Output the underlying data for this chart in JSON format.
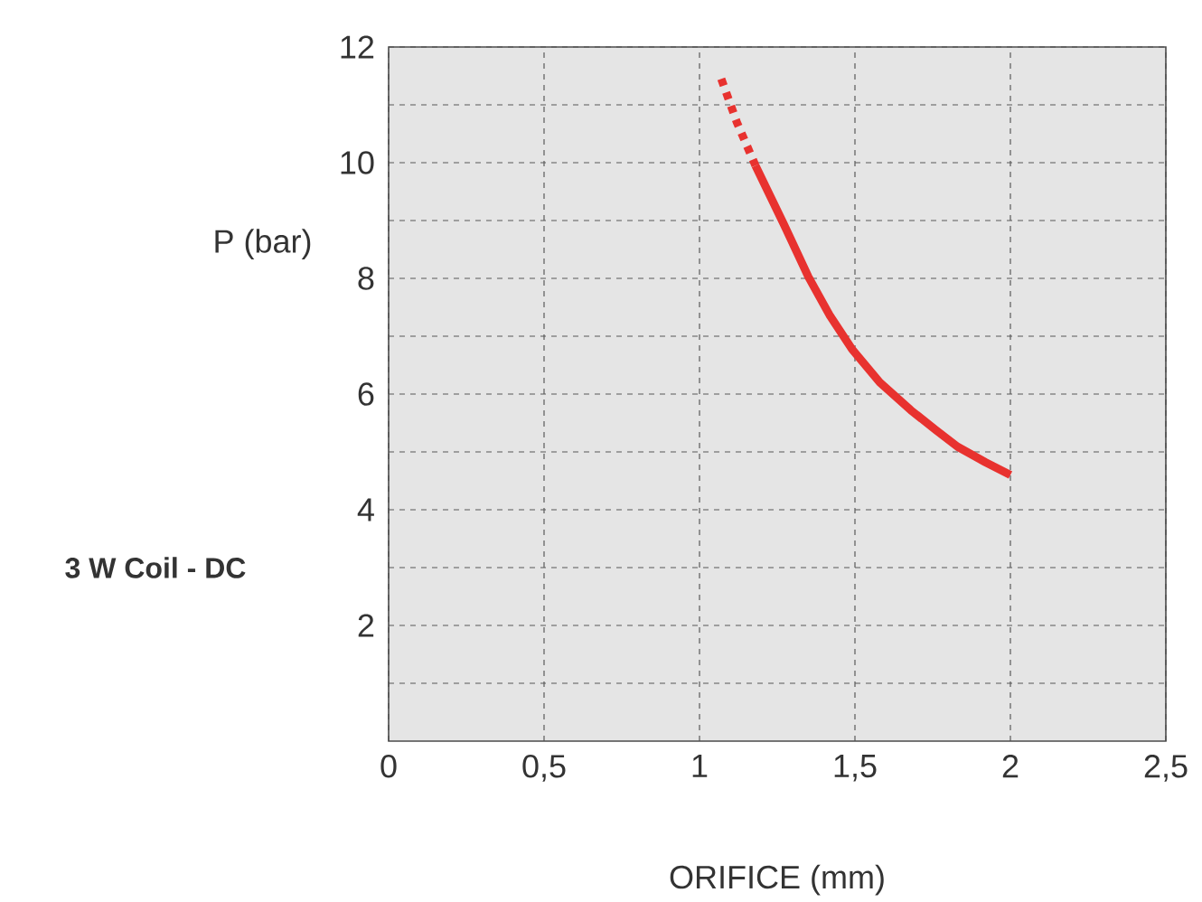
{
  "chart_data": {
    "type": "line",
    "xlabel": "ORIFICE (mm)",
    "ylabel": "P (bar)",
    "annotations": [
      "3 W Coil - DC"
    ],
    "series": [
      {
        "color": "#e8322f",
        "line_style": "dotted",
        "x": [
          1.07,
          1.12,
          1.18
        ],
        "values": [
          11.45,
          10.7,
          9.95
        ]
      },
      {
        "color": "#e8322f",
        "line_style": "solid",
        "x": [
          1.18,
          1.27,
          1.35,
          1.42,
          1.49,
          1.58,
          1.68,
          1.76,
          1.83,
          1.92,
          2.0
        ],
        "values": [
          9.95,
          8.95,
          8.03,
          7.35,
          6.78,
          6.2,
          5.72,
          5.38,
          5.09,
          4.82,
          4.6
        ]
      }
    ],
    "xlim": [
      0,
      2.5
    ],
    "ylim": [
      0,
      12
    ],
    "xticks": [
      0,
      {
        "value": 0.5,
        "label": "0,5"
      },
      1,
      {
        "value": 1.5,
        "label": "1,5"
      },
      2,
      {
        "value": 2.5,
        "label": "2,5"
      }
    ],
    "yticks": [
      {
        "value": 1,
        "label": null
      },
      2,
      {
        "value": 3,
        "label": null
      },
      4,
      {
        "value": 5,
        "label": null
      },
      6,
      {
        "value": 7,
        "label": null
      },
      8,
      {
        "value": 9,
        "label": null
      },
      10,
      {
        "value": 11,
        "label": null
      },
      12
    ],
    "grid": true
  }
}
